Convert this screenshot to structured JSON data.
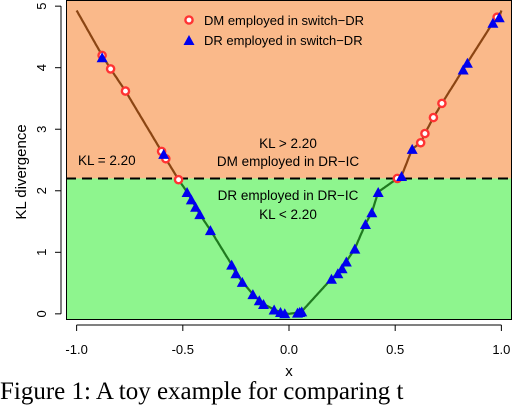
{
  "caption": "Figure 1: A toy example for comparing t",
  "colors": {
    "upper_region": "#FAB98A",
    "lower_region": "#8EF58E",
    "curve_upper": "#8B4513",
    "curve_lower": "#1F7A1F",
    "dm_point_fill": "#FF3333",
    "dm_point_center": "#FFFFFF",
    "dr_point": "#0000EE",
    "threshold_line": "#000000"
  },
  "icons": {
    "dm": "red-ring-circle",
    "dr": "blue-triangle"
  },
  "chart_data": {
    "type": "scatter",
    "xlabel": "x",
    "ylabel": "KL divergence",
    "xlim": [
      -1.05,
      1.05
    ],
    "ylim": [
      -0.1,
      5.1
    ],
    "xticks": [
      "-1.0",
      "-0.5",
      "0.0",
      "0.5",
      "1.0"
    ],
    "xtick_values": [
      -1.0,
      -0.5,
      0.0,
      0.5,
      1.0
    ],
    "yticks": [
      "0",
      "1",
      "2",
      "3",
      "4",
      "5"
    ],
    "ytick_values": [
      0,
      1,
      2,
      3,
      4,
      5
    ],
    "threshold": 2.2,
    "threshold_label": "KL = 2.20",
    "annotation_upper": [
      "KL > 2.20",
      "DM employed in DR−IC"
    ],
    "annotation_lower": [
      "DR employed in DR−IC",
      "KL < 2.20"
    ],
    "legend": [
      {
        "label": "DM employed in switch−DR",
        "marker": "circle"
      },
      {
        "label": "DR employed in switch−DR",
        "marker": "triangle"
      }
    ],
    "curve_x_range": [
      -1.0,
      1.0
    ],
    "series": [
      {
        "name": "DM employed in switch−DR",
        "marker": "circle",
        "x": [
          -0.88,
          -0.84,
          -0.77,
          -0.6,
          -0.58,
          -0.52,
          0.51,
          0.62,
          0.64,
          0.68,
          0.72,
          0.98
        ],
        "y": [
          4.2,
          3.98,
          3.62,
          2.64,
          2.52,
          2.18,
          2.2,
          2.78,
          2.93,
          3.19,
          3.42,
          4.82
        ]
      },
      {
        "name": "DR employed in switch−DR",
        "marker": "triangle",
        "x": [
          -0.88,
          -0.59,
          -0.48,
          -0.46,
          -0.44,
          -0.42,
          -0.37,
          -0.27,
          -0.25,
          -0.22,
          -0.17,
          -0.14,
          -0.12,
          -0.07,
          -0.04,
          -0.02,
          0.04,
          0.05,
          0.06,
          0.2,
          0.23,
          0.25,
          0.27,
          0.31,
          0.36,
          0.39,
          0.42,
          0.53,
          0.58,
          0.82,
          0.84,
          0.96,
          0.99
        ],
        "y": [
          4.17,
          2.6,
          1.98,
          1.86,
          1.74,
          1.62,
          1.36,
          0.8,
          0.66,
          0.52,
          0.32,
          0.22,
          0.16,
          0.07,
          0.03,
          0.01,
          0.02,
          0.03,
          0.04,
          0.57,
          0.66,
          0.74,
          0.85,
          1.06,
          1.46,
          1.65,
          1.98,
          2.24,
          2.68,
          3.97,
          4.08,
          4.73,
          4.82
        ]
      }
    ]
  }
}
